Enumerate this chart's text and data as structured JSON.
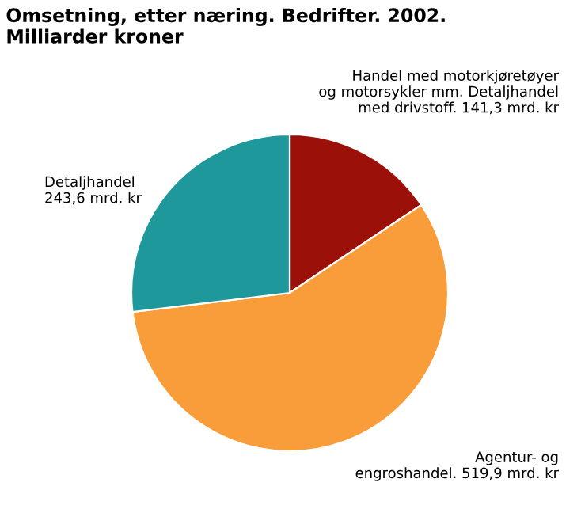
{
  "chart_data": {
    "type": "pie",
    "title": "Omsetning, etter næring. Bedrifter. 2002.\nMilliarder kroner",
    "categories": [
      "Handel med motorkjøretøyer\nog motorsykler mm. Detaljhandel\nmed drivstoff.",
      "Agentur- og\nengroshandel.",
      "Detaljhandel"
    ],
    "values": [
      141.3,
      519.9,
      243.6
    ],
    "value_labels": [
      "141,3 mrd. kr",
      "519,9 mrd. kr",
      "243,6 mrd. kr"
    ],
    "colors": [
      "#9b1109",
      "#f99d3a",
      "#1e989b"
    ]
  }
}
